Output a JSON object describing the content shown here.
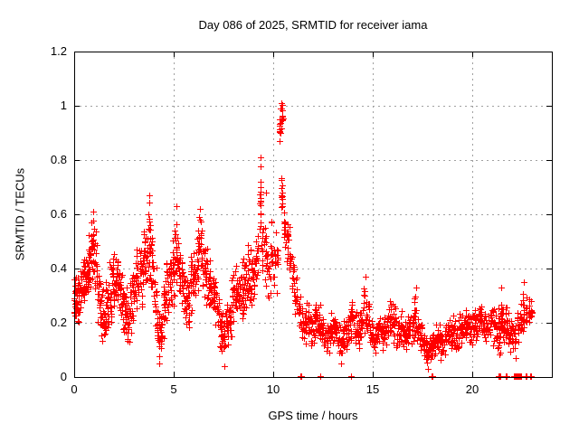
{
  "page": {
    "background": "#ffffff"
  },
  "chart_data": {
    "type": "scatter",
    "title": "Day 086 of 2025, SRMTID for receiver iama",
    "xlabel": "GPS time / hours",
    "ylabel": "SRMTID / TECUs",
    "xlim": [
      0,
      24
    ],
    "ylim": [
      0,
      1.2
    ],
    "xticks": [
      0,
      5,
      10,
      15,
      20
    ],
    "xticklabels": [
      "0",
      "5",
      "10",
      "15",
      "20"
    ],
    "yticks": [
      0,
      0.2,
      0.4,
      0.6,
      0.8,
      1.0,
      1.2
    ],
    "yticklabels": [
      "0",
      "0.2",
      "0.4",
      "0.6",
      "0.8",
      "1",
      "1.2"
    ],
    "grid": true,
    "grid_color": "#a0a0a0",
    "marker": "plus",
    "marker_color": "#ff0000",
    "marker_size_px": 7,
    "clusters_note": "vertical scatter striations: [x_center_hours, y_min, y_max, n_points, x_width_hours]",
    "clusters": [
      [
        0.05,
        0.2,
        0.42,
        22,
        0.1
      ],
      [
        0.18,
        0.18,
        0.4,
        18,
        0.12
      ],
      [
        0.33,
        0.22,
        0.42,
        18,
        0.14
      ],
      [
        0.48,
        0.26,
        0.48,
        18,
        0.14
      ],
      [
        0.63,
        0.25,
        0.46,
        18,
        0.14
      ],
      [
        0.78,
        0.3,
        0.55,
        18,
        0.14
      ],
      [
        0.93,
        0.33,
        0.62,
        20,
        0.14
      ],
      [
        1.08,
        0.28,
        0.55,
        16,
        0.14
      ],
      [
        1.23,
        0.2,
        0.45,
        16,
        0.14
      ],
      [
        1.38,
        0.1,
        0.34,
        18,
        0.14
      ],
      [
        1.53,
        0.12,
        0.3,
        16,
        0.14
      ],
      [
        1.68,
        0.15,
        0.38,
        16,
        0.14
      ],
      [
        1.83,
        0.2,
        0.44,
        16,
        0.14
      ],
      [
        1.98,
        0.22,
        0.5,
        16,
        0.14
      ],
      [
        2.13,
        0.24,
        0.48,
        16,
        0.14
      ],
      [
        2.28,
        0.2,
        0.44,
        16,
        0.14
      ],
      [
        2.43,
        0.16,
        0.4,
        16,
        0.14
      ],
      [
        2.58,
        0.12,
        0.35,
        16,
        0.14
      ],
      [
        2.73,
        0.1,
        0.32,
        16,
        0.14
      ],
      [
        2.88,
        0.15,
        0.38,
        16,
        0.14
      ],
      [
        3.03,
        0.2,
        0.45,
        16,
        0.14
      ],
      [
        3.18,
        0.22,
        0.5,
        16,
        0.14
      ],
      [
        3.33,
        0.25,
        0.52,
        16,
        0.14
      ],
      [
        3.48,
        0.28,
        0.56,
        16,
        0.14
      ],
      [
        3.63,
        0.3,
        0.6,
        16,
        0.14
      ],
      [
        3.78,
        0.33,
        0.67,
        20,
        0.12
      ],
      [
        3.93,
        0.24,
        0.58,
        16,
        0.14
      ],
      [
        4.08,
        0.14,
        0.44,
        16,
        0.14
      ],
      [
        4.23,
        0.06,
        0.3,
        18,
        0.14
      ],
      [
        4.38,
        0.08,
        0.28,
        16,
        0.14
      ],
      [
        4.53,
        0.12,
        0.38,
        16,
        0.14
      ],
      [
        4.68,
        0.18,
        0.45,
        16,
        0.14
      ],
      [
        4.83,
        0.22,
        0.5,
        16,
        0.14
      ],
      [
        4.98,
        0.25,
        0.55,
        16,
        0.14
      ],
      [
        5.13,
        0.28,
        0.62,
        18,
        0.14
      ],
      [
        5.28,
        0.24,
        0.55,
        16,
        0.14
      ],
      [
        5.43,
        0.2,
        0.48,
        16,
        0.14
      ],
      [
        5.58,
        0.17,
        0.42,
        16,
        0.14
      ],
      [
        5.73,
        0.15,
        0.4,
        16,
        0.14
      ],
      [
        5.88,
        0.2,
        0.46,
        16,
        0.14
      ],
      [
        6.03,
        0.25,
        0.52,
        16,
        0.14
      ],
      [
        6.18,
        0.3,
        0.58,
        16,
        0.14
      ],
      [
        6.33,
        0.32,
        0.62,
        18,
        0.14
      ],
      [
        6.48,
        0.28,
        0.55,
        16,
        0.14
      ],
      [
        6.63,
        0.25,
        0.5,
        16,
        0.14
      ],
      [
        6.78,
        0.24,
        0.46,
        16,
        0.14
      ],
      [
        6.93,
        0.22,
        0.42,
        16,
        0.14
      ],
      [
        7.08,
        0.17,
        0.4,
        16,
        0.14
      ],
      [
        7.23,
        0.12,
        0.34,
        16,
        0.14
      ],
      [
        7.38,
        0.08,
        0.28,
        16,
        0.14
      ],
      [
        7.53,
        0.05,
        0.25,
        16,
        0.14
      ],
      [
        7.68,
        0.1,
        0.3,
        16,
        0.14
      ],
      [
        7.83,
        0.14,
        0.35,
        16,
        0.14
      ],
      [
        7.98,
        0.17,
        0.4,
        16,
        0.14
      ],
      [
        8.13,
        0.2,
        0.42,
        16,
        0.14
      ],
      [
        8.28,
        0.21,
        0.45,
        16,
        0.14
      ],
      [
        8.43,
        0.2,
        0.44,
        16,
        0.14
      ],
      [
        8.58,
        0.24,
        0.48,
        16,
        0.14
      ],
      [
        8.73,
        0.25,
        0.5,
        16,
        0.14
      ],
      [
        8.88,
        0.22,
        0.48,
        16,
        0.14
      ],
      [
        9.03,
        0.25,
        0.52,
        16,
        0.14
      ],
      [
        9.18,
        0.3,
        0.56,
        14,
        0.12
      ],
      [
        9.35,
        0.52,
        0.81,
        16,
        0.1
      ],
      [
        9.44,
        0.35,
        0.56,
        10,
        0.08
      ],
      [
        9.6,
        0.3,
        0.68,
        12,
        0.12
      ],
      [
        9.75,
        0.25,
        0.55,
        12,
        0.12
      ],
      [
        9.9,
        0.28,
        0.6,
        12,
        0.12
      ],
      [
        10.05,
        0.3,
        0.58,
        10,
        0.12
      ],
      [
        10.18,
        0.3,
        0.55,
        10,
        0.1
      ],
      [
        10.35,
        0.85,
        1.01,
        12,
        0.09
      ],
      [
        10.45,
        0.88,
        1.02,
        8,
        0.06
      ],
      [
        10.42,
        0.6,
        0.76,
        12,
        0.09
      ],
      [
        10.56,
        0.45,
        0.68,
        10,
        0.08
      ],
      [
        10.7,
        0.38,
        0.62,
        14,
        0.12
      ],
      [
        10.85,
        0.32,
        0.58,
        12,
        0.12
      ],
      [
        11.0,
        0.25,
        0.5,
        12,
        0.12
      ],
      [
        11.15,
        0.18,
        0.4,
        12,
        0.12
      ],
      [
        11.3,
        0.12,
        0.32,
        12,
        0.12
      ],
      [
        11.45,
        0.1,
        0.28,
        12,
        0.12
      ],
      [
        11.6,
        0.1,
        0.26
      ],
      [
        11.75,
        0.12,
        0.28
      ],
      [
        11.9,
        0.1,
        0.25
      ],
      [
        12.05,
        0.12,
        0.28
      ],
      [
        12.2,
        0.14,
        0.3
      ],
      [
        12.35,
        0.12,
        0.28
      ],
      [
        12.5,
        0.1,
        0.25
      ],
      [
        12.65,
        0.08,
        0.22
      ],
      [
        12.8,
        0.08,
        0.22
      ],
      [
        12.95,
        0.1,
        0.24
      ],
      [
        13.1,
        0.1,
        0.25
      ],
      [
        13.25,
        0.07,
        0.22
      ],
      [
        13.4,
        0.06,
        0.2
      ],
      [
        13.55,
        0.08,
        0.22
      ],
      [
        13.7,
        0.08,
        0.24
      ],
      [
        13.85,
        0.1,
        0.27
      ],
      [
        14.0,
        0.12,
        0.31
      ],
      [
        14.15,
        0.1,
        0.26
      ],
      [
        14.3,
        0.1,
        0.25
      ],
      [
        14.45,
        0.12,
        0.29
      ],
      [
        14.6,
        0.14,
        0.37
      ],
      [
        14.75,
        0.12,
        0.3
      ],
      [
        14.9,
        0.1,
        0.25
      ],
      [
        15.05,
        0.08,
        0.22
      ],
      [
        15.2,
        0.08,
        0.21
      ],
      [
        15.35,
        0.1,
        0.24
      ],
      [
        15.5,
        0.08,
        0.22
      ],
      [
        15.65,
        0.1,
        0.24
      ],
      [
        15.8,
        0.11,
        0.27
      ],
      [
        15.95,
        0.12,
        0.3
      ],
      [
        16.1,
        0.1,
        0.28
      ],
      [
        16.25,
        0.08,
        0.24
      ],
      [
        16.4,
        0.09,
        0.25
      ],
      [
        16.55,
        0.08,
        0.22
      ],
      [
        16.7,
        0.09,
        0.23
      ],
      [
        16.85,
        0.1,
        0.26
      ],
      [
        17.0,
        0.12,
        0.28
      ],
      [
        17.15,
        0.14,
        0.33
      ],
      [
        17.3,
        0.1,
        0.26
      ],
      [
        17.45,
        0.08,
        0.22
      ],
      [
        17.6,
        0.06,
        0.18
      ],
      [
        17.75,
        0.04,
        0.15
      ],
      [
        17.9,
        0.05,
        0.16
      ],
      [
        18.05,
        0.06,
        0.18
      ],
      [
        18.2,
        0.07,
        0.2
      ],
      [
        18.35,
        0.08,
        0.2
      ],
      [
        18.5,
        0.06,
        0.18
      ],
      [
        18.65,
        0.08,
        0.2
      ],
      [
        18.8,
        0.08,
        0.22
      ],
      [
        18.95,
        0.08,
        0.22
      ],
      [
        19.1,
        0.1,
        0.24
      ],
      [
        19.25,
        0.08,
        0.22
      ],
      [
        19.4,
        0.1,
        0.24
      ],
      [
        19.55,
        0.1,
        0.25
      ],
      [
        19.7,
        0.12,
        0.26
      ],
      [
        19.85,
        0.1,
        0.25
      ],
      [
        20.0,
        0.1,
        0.24
      ],
      [
        20.15,
        0.12,
        0.26
      ],
      [
        20.3,
        0.12,
        0.28
      ],
      [
        20.45,
        0.14,
        0.28
      ],
      [
        20.6,
        0.12,
        0.26
      ],
      [
        20.75,
        0.1,
        0.25
      ],
      [
        20.9,
        0.11,
        0.26
      ],
      [
        21.05,
        0.1,
        0.27,
        13,
        0.14
      ],
      [
        21.2,
        0.08,
        0.26,
        13,
        0.14
      ],
      [
        21.35,
        0.06,
        0.3,
        13,
        0.1
      ],
      [
        21.45,
        0.05,
        0.33,
        14,
        0.08
      ],
      [
        21.57,
        0.08,
        0.3,
        12,
        0.1
      ],
      [
        21.7,
        0.1,
        0.28,
        12,
        0.12
      ],
      [
        21.85,
        0.08,
        0.25,
        12,
        0.12
      ],
      [
        22.0,
        0.09,
        0.22,
        11,
        0.12
      ],
      [
        22.15,
        0.08,
        0.2,
        10,
        0.12
      ],
      [
        22.3,
        0.1,
        0.26,
        11,
        0.1
      ],
      [
        22.45,
        0.12,
        0.3,
        12,
        0.08
      ],
      [
        22.57,
        0.14,
        0.35,
        12,
        0.08
      ],
      [
        22.7,
        0.13,
        0.31,
        10,
        0.08
      ],
      [
        22.85,
        0.15,
        0.3,
        9,
        0.08
      ],
      [
        22.97,
        0.18,
        0.3,
        7,
        0.07
      ]
    ],
    "peaks": [
      [
        10.43,
        1.01
      ],
      [
        10.4,
        0.99
      ],
      [
        9.35,
        0.81
      ],
      [
        9.62,
        0.68
      ],
      [
        3.78,
        0.67
      ],
      [
        5.15,
        0.63
      ],
      [
        6.32,
        0.62
      ],
      [
        0.95,
        0.61
      ],
      [
        14.62,
        0.37
      ],
      [
        22.57,
        0.35
      ],
      [
        21.45,
        0.33
      ],
      [
        17.17,
        0.33
      ]
    ],
    "low_outliers": [
      [
        22.2,
        0.07
      ],
      [
        4.25,
        0.05
      ],
      [
        7.55,
        0.04
      ],
      [
        13.42,
        0.05
      ],
      [
        17.78,
        0.03
      ]
    ],
    "zero_points": [
      11.36,
      11.43,
      12.35,
      13.9,
      17.95,
      18.02,
      21.33,
      21.37,
      21.41,
      21.66,
      21.74,
      22.07,
      22.12,
      22.17,
      22.22,
      22.27,
      22.32,
      22.37,
      22.42,
      22.47,
      22.66,
      22.71,
      22.9,
      22.95
    ]
  }
}
